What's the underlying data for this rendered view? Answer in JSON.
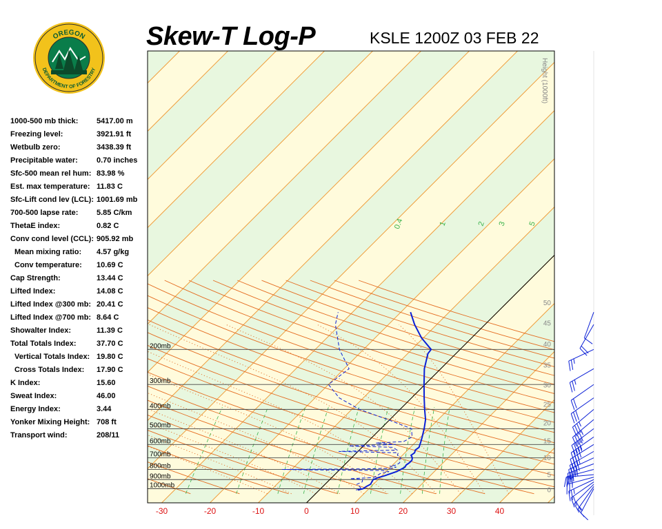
{
  "header": {
    "title": "Skew-T Log-P",
    "station": "KSLE 1200Z 03 FEB 22"
  },
  "logo": {
    "top_text": "OREGON",
    "bottom_text": "DEPARTMENT OF FORESTRY",
    "ring_color": "#f2c21b",
    "field_color": "#0a7d4a"
  },
  "indices": [
    {
      "label": "1000-500 mb thick:",
      "value": "5417.00 m",
      "indent": false
    },
    {
      "label": "Freezing level:",
      "value": "3921.91 ft",
      "indent": false
    },
    {
      "label": "Wetbulb zero:",
      "value": "3438.39 ft",
      "indent": false
    },
    {
      "label": "Precipitable water:",
      "value": "0.70 inches",
      "indent": false
    },
    {
      "label": "Sfc-500 mean rel hum:",
      "value": "83.98 %",
      "indent": false
    },
    {
      "label": "Est. max temperature:",
      "value": "11.83 C",
      "indent": false
    },
    {
      "label": "Sfc-Lift cond lev (LCL):",
      "value": "1001.69 mb",
      "indent": false
    },
    {
      "label": "700-500 lapse rate:",
      "value": "5.85 C/km",
      "indent": false
    },
    {
      "label": "ThetaE index:",
      "value": "0.82 C",
      "indent": false
    },
    {
      "label": "Conv cond level (CCL):",
      "value": "905.92 mb",
      "indent": false
    },
    {
      "label": "Mean mixing ratio:",
      "value": "4.57 g/kg",
      "indent": true
    },
    {
      "label": "Conv temperature:",
      "value": "10.69 C",
      "indent": true
    },
    {
      "label": "Cap Strength:",
      "value": "13.44 C",
      "indent": false
    },
    {
      "label": "Lifted Index:",
      "value": "14.08 C",
      "indent": false
    },
    {
      "label": "Lifted Index @300 mb:",
      "value": "20.41 C",
      "indent": false
    },
    {
      "label": "Lifted Index @700 mb:",
      "value": "8.64 C",
      "indent": false
    },
    {
      "label": "Showalter Index:",
      "value": "11.39 C",
      "indent": false
    },
    {
      "label": "Total Totals Index:",
      "value": "37.70 C",
      "indent": false
    },
    {
      "label": "Vertical Totals Index:",
      "value": "19.80 C",
      "indent": true
    },
    {
      "label": "Cross Totals Index:",
      "value": "17.90 C",
      "indent": true
    },
    {
      "label": "K Index:",
      "value": "15.60",
      "indent": false
    },
    {
      "label": "Sweat Index:",
      "value": "46.00",
      "indent": false
    },
    {
      "label": "Energy Index:",
      "value": "3.44",
      "indent": false
    },
    {
      "label": "Yonker Mixing Height:",
      "value": "708 ft",
      "indent": false
    },
    {
      "label": "Transport wind:",
      "value": "208/11",
      "indent": false
    }
  ],
  "chart_data": {
    "type": "line",
    "xlim": [
      -33,
      50
    ],
    "x_ticks": [
      -30,
      -20,
      -10,
      0,
      10,
      20,
      30,
      40
    ],
    "pressure_levels": [
      {
        "p": 200,
        "label": "200mb"
      },
      {
        "p": 300,
        "label": "300mb"
      },
      {
        "p": 400,
        "label": "400mb"
      },
      {
        "p": 500,
        "label": "500mb"
      },
      {
        "p": 600,
        "label": "600mb"
      },
      {
        "p": 700,
        "label": "700mb"
      },
      {
        "p": 800,
        "label": "800mb"
      },
      {
        "p": 900,
        "label": "900mb"
      },
      {
        "p": 1000,
        "label": "1000mb"
      }
    ],
    "height_axis": {
      "title": "Height (1000ft)",
      "ticks": [
        {
          "label": "0",
          "p": 1008
        },
        {
          "label": "5",
          "p": 845
        },
        {
          "label": "10",
          "p": 697
        },
        {
          "label": "15",
          "p": 573
        },
        {
          "label": "20",
          "p": 466
        },
        {
          "label": "25",
          "p": 376
        },
        {
          "label": "30",
          "p": 301
        },
        {
          "label": "35",
          "p": 239
        },
        {
          "label": "40",
          "p": 187
        },
        {
          "label": "45",
          "p": 147
        },
        {
          "label": "50",
          "p": 116
        }
      ]
    },
    "mixing_ratio_labels": [
      "0.4",
      "1",
      "2",
      "3",
      "5"
    ],
    "series": [
      {
        "name": "",
        "kind": "temperature",
        "color": "#0a1fd6",
        "points": [
          [
            1015,
            8.0
          ],
          [
            1000,
            8.8
          ],
          [
            975,
            9.0
          ],
          [
            950,
            9.4
          ],
          [
            925,
            9.2
          ],
          [
            900,
            9.0
          ],
          [
            880,
            9.6
          ],
          [
            860,
            10.6
          ],
          [
            840,
            11.4
          ],
          [
            820,
            12.2
          ],
          [
            800,
            12.6
          ],
          [
            780,
            13.0
          ],
          [
            760,
            12.8
          ],
          [
            740,
            13.0
          ],
          [
            720,
            13.0
          ],
          [
            700,
            12.6
          ],
          [
            680,
            11.8
          ],
          [
            660,
            12.0
          ],
          [
            640,
            11.6
          ],
          [
            620,
            11.8
          ],
          [
            600,
            11.4
          ],
          [
            580,
            11.0
          ],
          [
            550,
            10.3
          ],
          [
            500,
            9.0
          ],
          [
            450,
            7.4
          ],
          [
            400,
            5.1
          ],
          [
            350,
            2.6
          ],
          [
            300,
            -0.2
          ],
          [
            250,
            -3.4
          ],
          [
            210,
            -5.8
          ],
          [
            200,
            -6.0
          ],
          [
            175,
            -10.4
          ],
          [
            150,
            -14.6
          ],
          [
            130,
            -18.0
          ]
        ]
      },
      {
        "name": "",
        "kind": "dewpoint",
        "color": "#0a1fd6",
        "points": [
          [
            1015,
            7.6
          ],
          [
            1000,
            8.4
          ],
          [
            975,
            7.6
          ],
          [
            950,
            6.6
          ],
          [
            925,
            7.2
          ],
          [
            900,
            6.8
          ],
          [
            890,
            4.0
          ],
          [
            880,
            8.6
          ],
          [
            860,
            9.0
          ],
          [
            840,
            9.2
          ],
          [
            820,
            10.6
          ],
          [
            810,
            8.8
          ],
          [
            805,
            -6.0
          ],
          [
            800,
            -12.0
          ],
          [
            795,
            5.0
          ],
          [
            790,
            10.4
          ],
          [
            780,
            11.2
          ],
          [
            770,
            9.6
          ],
          [
            760,
            10.8
          ],
          [
            740,
            11.0
          ],
          [
            720,
            10.4
          ],
          [
            700,
            10.2
          ],
          [
            680,
            9.0
          ],
          [
            660,
            8.6
          ],
          [
            650,
            -4.0
          ],
          [
            640,
            7.8
          ],
          [
            620,
            6.4
          ],
          [
            610,
            -3.0
          ],
          [
            600,
            6.4
          ],
          [
            590,
            2.0
          ],
          [
            580,
            7.4
          ],
          [
            550,
            8.2
          ],
          [
            500,
            6.4
          ],
          [
            450,
            -0.4
          ],
          [
            400,
            -8.4
          ],
          [
            350,
            -15.0
          ],
          [
            300,
            -20.0
          ],
          [
            250,
            -19.0
          ],
          [
            200,
            -25.0
          ],
          [
            150,
            -31.0
          ],
          [
            130,
            -33.0
          ]
        ]
      }
    ],
    "wind_barbs": [
      {
        "p": 1000,
        "dir": 208,
        "spd": 11
      },
      {
        "p": 975,
        "dir": 215,
        "spd": 15
      },
      {
        "p": 950,
        "dir": 225,
        "spd": 20
      },
      {
        "p": 925,
        "dir": 235,
        "spd": 20
      },
      {
        "p": 900,
        "dir": 245,
        "spd": 25
      },
      {
        "p": 875,
        "dir": 255,
        "spd": 25
      },
      {
        "p": 850,
        "dir": 265,
        "spd": 25
      },
      {
        "p": 800,
        "dir": 255,
        "spd": 30
      },
      {
        "p": 750,
        "dir": 250,
        "spd": 35
      },
      {
        "p": 700,
        "dir": 245,
        "spd": 40
      },
      {
        "p": 650,
        "dir": 240,
        "spd": 40
      },
      {
        "p": 600,
        "dir": 238,
        "spd": 40
      },
      {
        "p": 550,
        "dir": 235,
        "spd": 45
      },
      {
        "p": 500,
        "dir": 233,
        "spd": 45
      },
      {
        "p": 450,
        "dir": 230,
        "spd": 45
      },
      {
        "p": 400,
        "dir": 230,
        "spd": 35
      },
      {
        "p": 350,
        "dir": 235,
        "spd": 30
      },
      {
        "p": 300,
        "dir": 235,
        "spd": 20
      },
      {
        "p": 250,
        "dir": 240,
        "spd": 25
      },
      {
        "p": 200,
        "dir": 245,
        "spd": 25
      },
      {
        "p": 150,
        "dir": 210,
        "spd": 20
      },
      {
        "p": 130,
        "dir": 200,
        "spd": 10
      }
    ]
  }
}
